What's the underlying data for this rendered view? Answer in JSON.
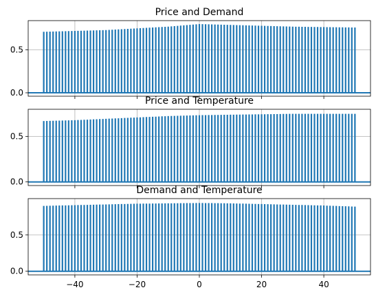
{
  "chart_data": [
    {
      "type": "bar",
      "title": "Price and Demand",
      "xlim": [
        -55,
        55
      ],
      "ylim": [
        -0.04,
        0.84
      ],
      "x": {
        "start": -50,
        "end": 50,
        "step": 1
      },
      "profile": [
        [
          -50,
          0.71
        ],
        [
          -40,
          0.72
        ],
        [
          -30,
          0.73
        ],
        [
          -20,
          0.75
        ],
        [
          -10,
          0.77
        ],
        [
          0,
          0.8
        ],
        [
          10,
          0.79
        ],
        [
          20,
          0.78
        ],
        [
          30,
          0.77
        ],
        [
          40,
          0.765
        ],
        [
          50,
          0.76
        ]
      ],
      "yticks": [
        0.0,
        0.5
      ],
      "ytick_labels": [
        "0.0",
        "0.5"
      ],
      "grid": true
    },
    {
      "type": "bar",
      "title": "Price and Temperature",
      "xlim": [
        -55,
        55
      ],
      "ylim": [
        -0.04,
        0.8
      ],
      "x": {
        "start": -50,
        "end": 50,
        "step": 1
      },
      "profile": [
        [
          -50,
          0.67
        ],
        [
          -40,
          0.68
        ],
        [
          -30,
          0.695
        ],
        [
          -20,
          0.71
        ],
        [
          -10,
          0.725
        ],
        [
          0,
          0.735
        ],
        [
          10,
          0.74
        ],
        [
          20,
          0.745
        ],
        [
          30,
          0.75
        ],
        [
          40,
          0.75
        ],
        [
          50,
          0.75
        ]
      ],
      "yticks": [
        0.0,
        0.5
      ],
      "ytick_labels": [
        "0.0",
        "0.5"
      ],
      "grid": true
    },
    {
      "type": "bar",
      "title": "Demand and Temperature",
      "xlim": [
        -55,
        55
      ],
      "ylim": [
        -0.05,
        1.0
      ],
      "x": {
        "start": -50,
        "end": 50,
        "step": 1
      },
      "profile": [
        [
          -50,
          0.9
        ],
        [
          -40,
          0.91
        ],
        [
          -30,
          0.92
        ],
        [
          -20,
          0.93
        ],
        [
          -10,
          0.935
        ],
        [
          0,
          0.94
        ],
        [
          10,
          0.935
        ],
        [
          20,
          0.925
        ],
        [
          30,
          0.915
        ],
        [
          40,
          0.905
        ],
        [
          50,
          0.89
        ]
      ],
      "yticks": [
        0.0,
        0.5
      ],
      "ytick_labels": [
        "0.0",
        "0.5"
      ],
      "grid": true
    }
  ],
  "xaxis": {
    "ticks": [
      -40,
      -20,
      0,
      20,
      40
    ],
    "tick_labels": [
      "−40",
      "−20",
      "0",
      "20",
      "40"
    ]
  },
  "colors": {
    "bar": "#1f77b4",
    "grid": "#b0b0b0",
    "axis": "#000000"
  }
}
